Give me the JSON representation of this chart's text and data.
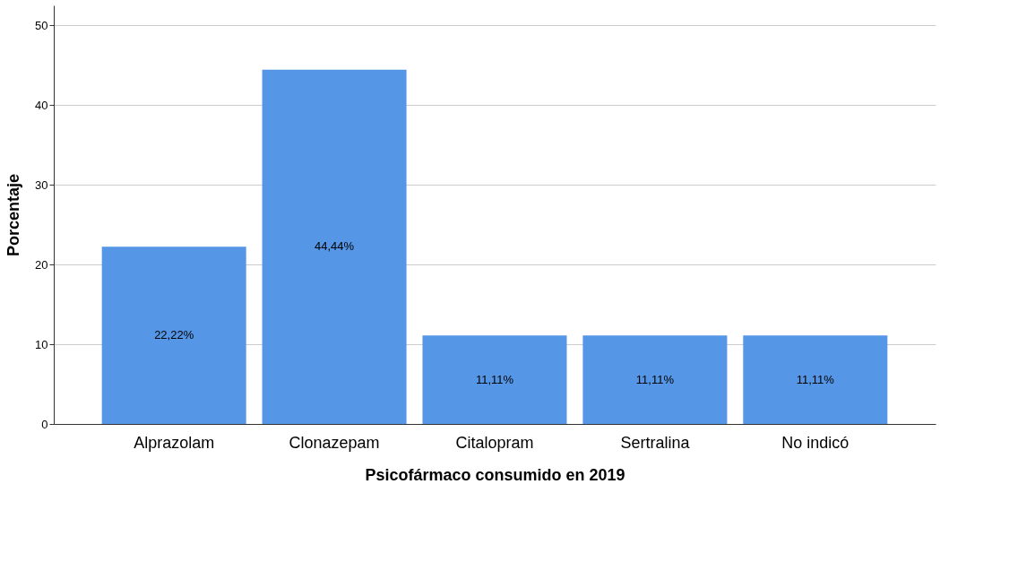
{
  "chart_data": {
    "type": "bar",
    "xlabel": "Psicofármaco consumido en 2019",
    "ylabel": "Porcentaje",
    "categories": [
      "Alprazolam",
      "Clonazepam",
      "Citalopram",
      "Sertralina",
      "No indicó"
    ],
    "values": [
      22.22,
      44.44,
      11.11,
      11.11,
      11.11
    ],
    "value_labels": [
      "22,22%",
      "44,44%",
      "11,11%",
      "11,11%",
      "11,11%"
    ],
    "color": "#5596e6",
    "ylim": [
      0,
      52.5
    ],
    "yticks": [
      0,
      10,
      20,
      30,
      40,
      50
    ],
    "grid": "y"
  }
}
